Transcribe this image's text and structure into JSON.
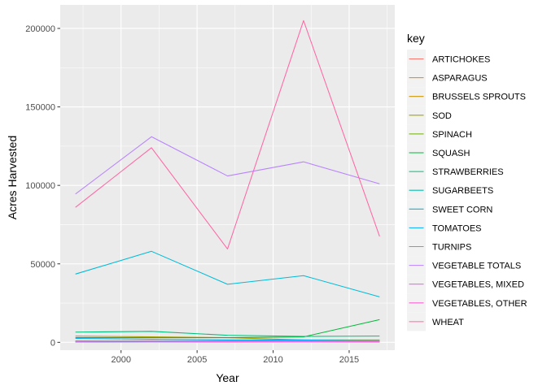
{
  "chart_data": {
    "type": "line",
    "title": "",
    "xlabel": "Year",
    "ylabel": "Acres Harvested",
    "xlim": [
      1996,
      2018
    ],
    "ylim": [
      -5000,
      215000
    ],
    "x_ticks": [
      2000,
      2005,
      2010,
      2015
    ],
    "x_tick_labels": [
      "2000",
      "2005",
      "2010",
      "2015"
    ],
    "y_ticks": [
      0,
      50000,
      100000,
      150000,
      200000
    ],
    "y_tick_labels": [
      "0",
      "50000",
      "100000",
      "150000",
      "200000"
    ],
    "grid": true,
    "legend": {
      "title": "key",
      "position": "right"
    },
    "x": [
      1997,
      2002,
      2007,
      2012,
      2017
    ],
    "series": [
      {
        "name": "ARTICHOKES",
        "color": "#F8766D",
        "values": [
          300,
          300,
          200,
          250,
          200
        ]
      },
      {
        "name": "ASPARAGUS",
        "color": "#E58700",
        "values": [
          1000,
          800,
          700,
          600,
          500
        ]
      },
      {
        "name": "BRUSSELS SPROUTS",
        "color": "#C99800",
        "values": [
          200,
          200,
          200,
          200,
          200
        ]
      },
      {
        "name": "SOD",
        "color": "#A3A500",
        "values": [
          4000,
          3500,
          3000,
          1500,
          1500
        ]
      },
      {
        "name": "SPINACH",
        "color": "#6BB100",
        "values": [
          500,
          800,
          900,
          1000,
          1100
        ]
      },
      {
        "name": "SQUASH",
        "color": "#00BA38",
        "values": [
          3000,
          3000,
          3000,
          3500,
          14500
        ]
      },
      {
        "name": "STRAWBERRIES",
        "color": "#00BF7D",
        "values": [
          6500,
          7000,
          4500,
          3800,
          4000
        ]
      },
      {
        "name": "SUGARBEETS",
        "color": "#00C0AF",
        "values": [
          400,
          300,
          200,
          300,
          200
        ]
      },
      {
        "name": "SWEET CORN",
        "color": "#00BCD8",
        "values": [
          43500,
          58000,
          37000,
          42500,
          29000
        ]
      },
      {
        "name": "TOMATOES",
        "color": "#00B0F6",
        "values": [
          2500,
          2000,
          1500,
          1500,
          1000
        ]
      },
      {
        "name": "TURNIPS",
        "color": "#619CFF",
        "values": [
          200,
          300,
          500,
          700,
          1200
        ]
      },
      {
        "name": "VEGETABLE TOTALS",
        "color": "#B983FF",
        "values": [
          94500,
          131000,
          106000,
          115000,
          101000
        ]
      },
      {
        "name": "VEGETABLES, MIXED",
        "color": "#E76BF3",
        "values": [
          100,
          200,
          100,
          200,
          100
        ]
      },
      {
        "name": "VEGETABLES, OTHER",
        "color": "#FD61D1",
        "values": [
          800,
          1000,
          600,
          800,
          600
        ]
      },
      {
        "name": "WHEAT",
        "color": "#FF67A4",
        "values": [
          86000,
          124000,
          59500,
          205000,
          67500
        ]
      }
    ]
  }
}
